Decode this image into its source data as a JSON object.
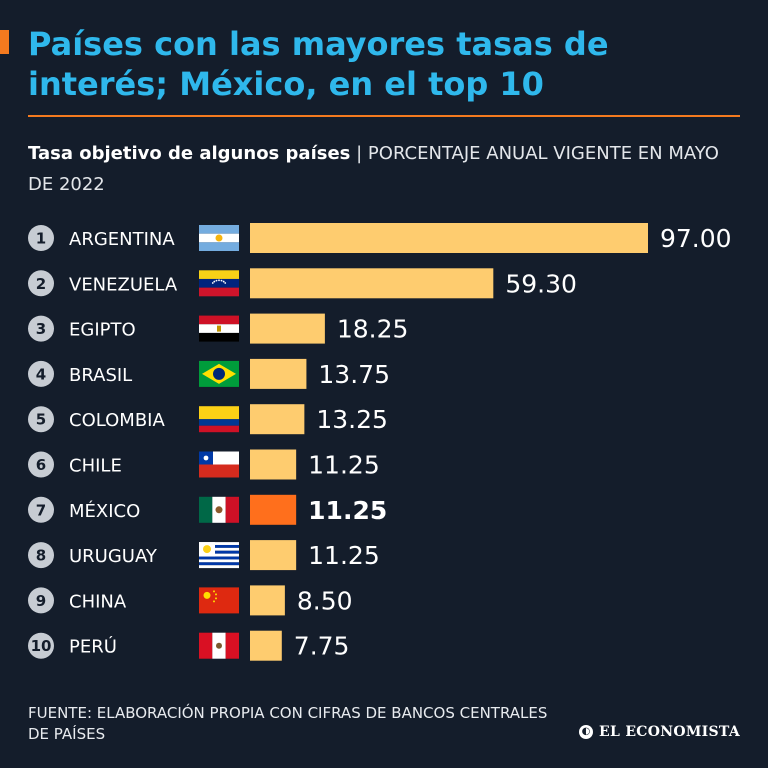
{
  "header": {
    "title": "Países con las mayores tasas de interés; México, en el top 10",
    "subtitle_bold": "Tasa objetivo de algunos países",
    "subtitle_separator": "|",
    "subtitle_light": "PORCENTAJE ANUAL VIGENTE EN MAYO DE 2022"
  },
  "footer": {
    "source": "FUENTE: ELABORACIÓN PROPIA CON CIFRAS DE BANCOS CENTRALES DE PAÍSES",
    "logo": "EL ECONOMISTA"
  },
  "colors": {
    "background": "#141d2b",
    "title": "#2fb8ec",
    "accent": "#f47a1f",
    "bar": "#fecc6f",
    "bar_highlight": "#ff6f1c"
  },
  "chart_data": {
    "type": "bar",
    "orientation": "horizontal",
    "title": "Tasa objetivo de algunos países",
    "unit": "PORCENTAJE ANUAL",
    "xlim": [
      0,
      97
    ],
    "highlight": "MÉXICO",
    "ranks": [
      "1",
      "2",
      "3",
      "4",
      "5",
      "6",
      "7",
      "8",
      "9",
      "10"
    ],
    "categories": [
      "ARGENTINA",
      "VENEZUELA",
      "EGIPTO",
      "BRASIL",
      "COLOMBIA",
      "CHILE",
      "MÉXICO",
      "URUGUAY",
      "CHINA",
      "PERÚ"
    ],
    "flags": [
      "argentina-flag",
      "venezuela-flag",
      "egypt-flag",
      "brazil-flag",
      "colombia-flag",
      "chile-flag",
      "mexico-flag",
      "uruguay-flag",
      "china-flag",
      "peru-flag"
    ],
    "values": [
      97.0,
      59.3,
      18.25,
      13.75,
      13.25,
      11.25,
      11.25,
      11.25,
      8.5,
      7.75
    ],
    "value_labels": [
      "97.00",
      "59.30",
      "18.25",
      "13.75",
      "13.25",
      "11.25",
      "11.25",
      "11.25",
      "8.50",
      "7.75"
    ]
  }
}
